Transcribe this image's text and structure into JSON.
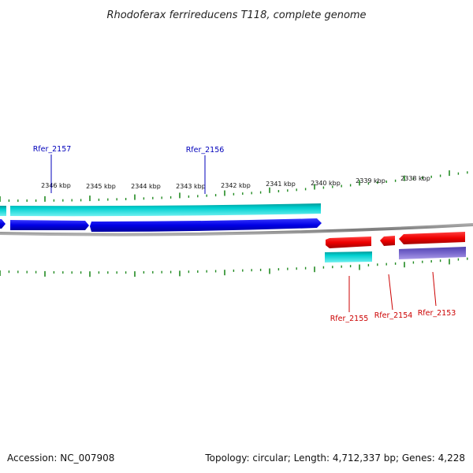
{
  "title": "Rhodoferax ferrireducens T118, complete genome",
  "footer": {
    "accession": "Accession: NC_007908",
    "topology": "Topology: circular; Length: 4,712,337 bp; Genes: 4,228"
  },
  "colors": {
    "plus_strand_gene": "#0000ee",
    "plus_strand_cds": "#00c8c8",
    "minus_strand_gene": "#ee0000",
    "minus_strand_cds": "#00c8c8",
    "minus_strand_other": "#7060c8",
    "backbone": "#808080",
    "tick": "#228b22",
    "label_plus": "#0000bb",
    "label_minus": "#cc0000"
  },
  "scale": {
    "unit": "kbp",
    "labels": [
      "2346 kbp",
      "2345 kbp",
      "2344 kbp",
      "2343 kbp",
      "2342 kbp",
      "2341 kbp",
      "2340 kbp",
      "2339 kbp",
      "2338 kbp"
    ]
  },
  "genes": [
    {
      "name": "Rfer_2157",
      "strand": "+"
    },
    {
      "name": "Rfer_2156",
      "strand": "+"
    },
    {
      "name": "Rfer_2155",
      "strand": "-"
    },
    {
      "name": "Rfer_2154",
      "strand": "-"
    },
    {
      "name": "Rfer_2153",
      "strand": "-"
    }
  ]
}
